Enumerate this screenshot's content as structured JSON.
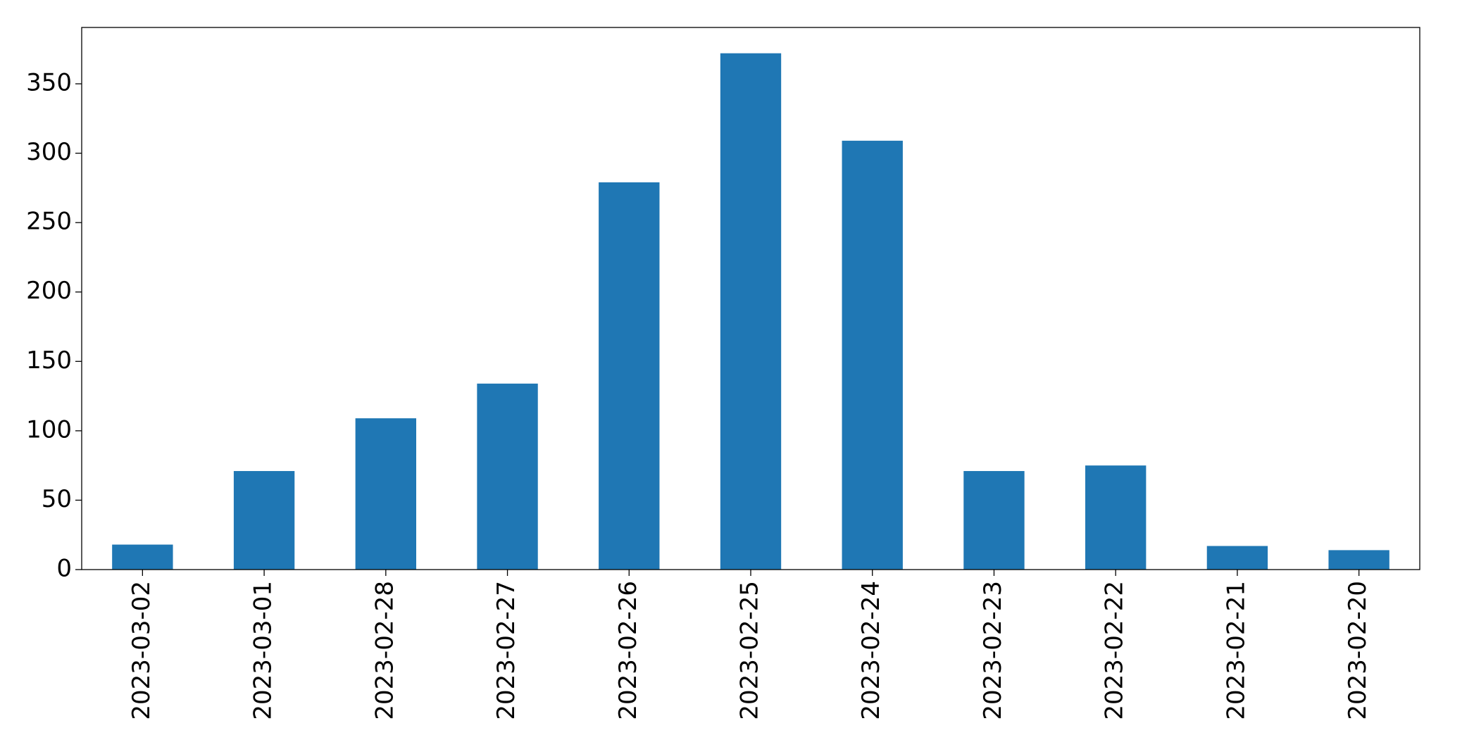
{
  "chart_data": {
    "type": "bar",
    "categories": [
      "2023-03-02",
      "2023-03-01",
      "2023-02-28",
      "2023-02-27",
      "2023-02-26",
      "2023-02-25",
      "2023-02-24",
      "2023-02-23",
      "2023-02-22",
      "2023-02-21",
      "2023-02-20"
    ],
    "values": [
      18,
      71,
      109,
      134,
      279,
      372,
      309,
      71,
      75,
      17,
      14
    ],
    "color": "#1f77b4",
    "ylim": [
      0,
      390.6
    ],
    "yticks": [
      0,
      50,
      100,
      150,
      200,
      250,
      300,
      350
    ],
    "grid": false
  }
}
